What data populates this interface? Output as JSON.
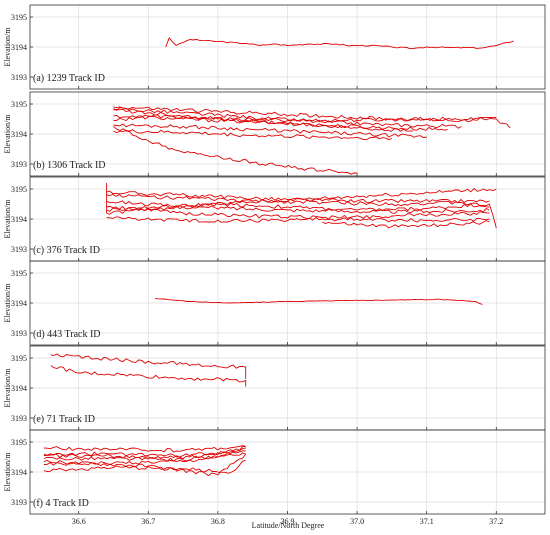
{
  "chart_data": {
    "type": "line",
    "xlabel": "Latitude/North Degree",
    "ylabel": "Elevation/m",
    "xlim": [
      36.53,
      37.27
    ],
    "xticks": [
      "36.6",
      "36.7",
      "36.8",
      "36.9",
      "37.0",
      "37.1",
      "37.2"
    ],
    "grid": true,
    "line_color": "#e00000",
    "panels": [
      {
        "label": "(a) 1239 Track ID",
        "ylim": [
          3192.6,
          3195.4
        ],
        "yticks": [
          "3193",
          "3194",
          "3195"
        ],
        "series": [
          {
            "points": [
              [
                36.725,
                3194.0
              ],
              [
                36.73,
                3194.3
              ],
              [
                36.74,
                3194.05
              ],
              [
                36.76,
                3194.25
              ],
              [
                36.8,
                3194.18
              ],
              [
                36.84,
                3194.12
              ],
              [
                36.86,
                3194.05
              ],
              [
                36.88,
                3194.1
              ],
              [
                36.9,
                3194.05
              ],
              [
                36.93,
                3194.1
              ],
              [
                36.97,
                3194.1
              ],
              [
                36.985,
                3194.05
              ],
              [
                37.02,
                3194.05
              ],
              [
                37.05,
                3194.0
              ],
              [
                37.08,
                3193.95
              ],
              [
                37.1,
                3194.0
              ],
              [
                37.14,
                3193.98
              ],
              [
                37.18,
                3193.97
              ],
              [
                37.2,
                3194.05
              ],
              [
                37.225,
                3194.2
              ]
            ]
          }
        ]
      },
      {
        "label": "(b) 1306 Track ID",
        "ylim": [
          3192.6,
          3195.4
        ],
        "yticks": [
          "3193",
          "3194",
          "3195"
        ],
        "series": [
          {
            "points": [
              [
                36.65,
                3194.9
              ],
              [
                36.75,
                3194.8
              ],
              [
                36.85,
                3194.7
              ],
              [
                36.95,
                3194.6
              ],
              [
                37.05,
                3194.5
              ],
              [
                37.15,
                3194.45
              ],
              [
                37.2,
                3194.55
              ]
            ]
          },
          {
            "points": [
              [
                36.65,
                3194.85
              ],
              [
                36.75,
                3194.7
              ],
              [
                36.85,
                3194.55
              ],
              [
                36.95,
                3194.4
              ],
              [
                37.05,
                3194.3
              ],
              [
                37.15,
                3194.25
              ]
            ]
          },
          {
            "points": [
              [
                36.65,
                3194.6
              ],
              [
                36.75,
                3194.5
              ],
              [
                36.85,
                3194.4
              ],
              [
                36.95,
                3194.3
              ],
              [
                37.05,
                3194.2
              ],
              [
                37.13,
                3194.15
              ]
            ]
          },
          {
            "points": [
              [
                36.65,
                3194.3
              ],
              [
                36.75,
                3194.25
              ],
              [
                36.85,
                3194.15
              ],
              [
                36.95,
                3194.05
              ],
              [
                37.05,
                3193.95
              ],
              [
                37.1,
                3193.9
              ]
            ]
          },
          {
            "points": [
              [
                36.65,
                3194.1
              ],
              [
                36.75,
                3194.05
              ],
              [
                36.85,
                3193.95
              ],
              [
                36.95,
                3193.9
              ],
              [
                37.05,
                3193.85
              ]
            ]
          },
          {
            "points": [
              [
                36.65,
                3194.8
              ],
              [
                36.78,
                3194.55
              ],
              [
                36.9,
                3194.35
              ],
              [
                37.0,
                3194.2
              ],
              [
                37.08,
                3194.1
              ]
            ]
          },
          {
            "points": [
              [
                36.65,
                3194.45
              ],
              [
                36.7,
                3194.6
              ],
              [
                36.8,
                3194.5
              ],
              [
                36.95,
                3194.45
              ],
              [
                37.1,
                3194.5
              ],
              [
                37.2,
                3194.5
              ],
              [
                37.22,
                3194.2
              ]
            ]
          },
          {
            "points": [
              [
                36.65,
                3194.25
              ],
              [
                36.72,
                3193.6
              ],
              [
                36.78,
                3193.3
              ],
              [
                36.85,
                3193.05
              ],
              [
                36.92,
                3192.85
              ],
              [
                37.0,
                3192.7
              ]
            ]
          }
        ]
      },
      {
        "label": "(c) 376 Track ID",
        "ylim": [
          3192.6,
          3195.4
        ],
        "yticks": [
          "3193",
          "3194",
          "3195"
        ],
        "series": [
          {
            "points": [
              [
                36.64,
                3195.2
              ],
              [
                36.64,
                3194.2
              ],
              [
                36.8,
                3194.5
              ],
              [
                36.9,
                3194.4
              ],
              [
                37.0,
                3194.3
              ],
              [
                37.1,
                3194.35
              ],
              [
                37.19,
                3194.5
              ],
              [
                37.2,
                3193.7
              ]
            ]
          },
          {
            "points": [
              [
                36.64,
                3194.6
              ],
              [
                36.75,
                3194.4
              ],
              [
                36.9,
                3194.3
              ],
              [
                37.0,
                3194.25
              ],
              [
                37.1,
                3194.25
              ],
              [
                37.19,
                3194.3
              ]
            ]
          },
          {
            "points": [
              [
                36.64,
                3194.4
              ],
              [
                36.75,
                3194.2
              ],
              [
                36.85,
                3194.1
              ],
              [
                36.95,
                3194.05
              ],
              [
                37.05,
                3194.1
              ],
              [
                37.19,
                3194.2
              ]
            ]
          },
          {
            "points": [
              [
                36.64,
                3194.8
              ],
              [
                36.75,
                3194.7
              ],
              [
                36.85,
                3194.6
              ],
              [
                36.95,
                3194.55
              ],
              [
                37.05,
                3194.5
              ],
              [
                37.15,
                3194.55
              ],
              [
                37.19,
                3194.4
              ]
            ]
          },
          {
            "points": [
              [
                36.64,
                3194.3
              ],
              [
                37.2,
                3195.0
              ]
            ]
          },
          {
            "points": [
              [
                36.64,
                3194.9
              ],
              [
                36.8,
                3194.75
              ],
              [
                36.9,
                3194.65
              ],
              [
                37.0,
                3194.6
              ],
              [
                37.19,
                3194.6
              ]
            ]
          },
          {
            "points": [
              [
                36.64,
                3194.05
              ],
              [
                36.75,
                3193.95
              ],
              [
                36.85,
                3193.95
              ],
              [
                36.95,
                3194.0
              ],
              [
                37.1,
                3193.95
              ],
              [
                37.19,
                3194.0
              ]
            ]
          },
          {
            "points": [
              [
                36.95,
                3193.9
              ],
              [
                37.05,
                3193.75
              ],
              [
                37.12,
                3193.8
              ],
              [
                37.19,
                3193.9
              ]
            ]
          }
        ]
      },
      {
        "label": "(d) 443 Track ID",
        "ylim": [
          3192.6,
          3195.4
        ],
        "yticks": [
          "3193",
          "3194",
          "3195"
        ],
        "series": [
          {
            "points": [
              [
                36.71,
                3194.15
              ],
              [
                36.76,
                3194.05
              ],
              [
                36.82,
                3194.0
              ],
              [
                36.9,
                3194.05
              ],
              [
                36.98,
                3194.08
              ],
              [
                37.05,
                3194.1
              ],
              [
                37.12,
                3194.12
              ],
              [
                37.17,
                3194.05
              ],
              [
                37.18,
                3193.95
              ]
            ]
          }
        ]
      },
      {
        "label": "(e) 71 Track ID",
        "ylim": [
          3192.6,
          3195.4
        ],
        "yticks": [
          "3193",
          "3194",
          "3195"
        ],
        "series": [
          {
            "points": [
              [
                36.56,
                3195.1
              ],
              [
                36.65,
                3194.95
              ],
              [
                36.75,
                3194.8
              ],
              [
                36.84,
                3194.7
              ],
              [
                36.84,
                3194.3
              ]
            ]
          },
          {
            "points": [
              [
                36.56,
                3194.75
              ],
              [
                36.6,
                3194.5
              ],
              [
                36.66,
                3194.45
              ],
              [
                36.72,
                3194.35
              ],
              [
                36.78,
                3194.3
              ],
              [
                36.84,
                3194.25
              ],
              [
                36.84,
                3194.05
              ]
            ]
          }
        ]
      },
      {
        "label": "(f) 4 Track ID",
        "ylim": [
          3192.6,
          3195.4
        ],
        "yticks": [
          "3193",
          "3194",
          "3195"
        ],
        "series": [
          {
            "points": [
              [
                36.55,
                3194.8
              ],
              [
                36.65,
                3194.75
              ],
              [
                36.75,
                3194.72
              ],
              [
                36.84,
                3194.85
              ]
            ]
          },
          {
            "points": [
              [
                36.55,
                3194.6
              ],
              [
                36.65,
                3194.6
              ],
              [
                36.75,
                3194.55
              ],
              [
                36.84,
                3194.7
              ]
            ]
          },
          {
            "points": [
              [
                36.55,
                3194.45
              ],
              [
                36.65,
                3194.45
              ],
              [
                36.75,
                3194.4
              ],
              [
                36.84,
                3194.8
              ]
            ]
          },
          {
            "points": [
              [
                36.55,
                3194.25
              ],
              [
                36.65,
                3194.3
              ],
              [
                36.75,
                3194.35
              ],
              [
                36.8,
                3194.5
              ],
              [
                36.84,
                3194.6
              ]
            ]
          },
          {
            "points": [
              [
                36.55,
                3194.05
              ],
              [
                36.65,
                3194.15
              ],
              [
                36.75,
                3194.1
              ],
              [
                36.82,
                3194.0
              ],
              [
                36.84,
                3194.4
              ]
            ]
          },
          {
            "points": [
              [
                36.55,
                3194.35
              ],
              [
                36.7,
                3194.2
              ],
              [
                36.8,
                3193.9
              ],
              [
                36.84,
                3194.6
              ]
            ]
          },
          {
            "points": [
              [
                36.55,
                3194.55
              ],
              [
                36.7,
                3194.5
              ],
              [
                36.8,
                3194.5
              ],
              [
                36.84,
                3194.85
              ]
            ]
          }
        ]
      }
    ]
  }
}
